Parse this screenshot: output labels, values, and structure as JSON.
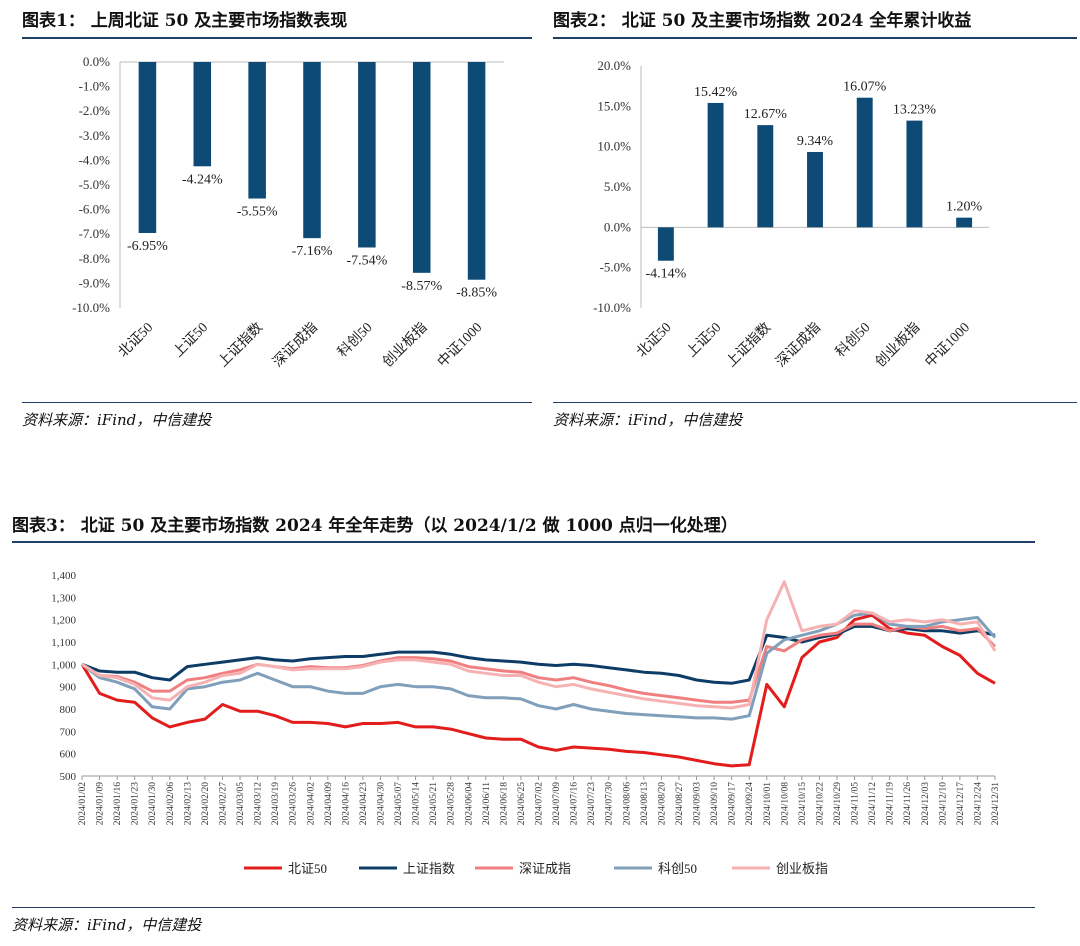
{
  "titles": {
    "chart1": "图表1：  上周北证 50 及主要市场指数表现",
    "chart2": "图表2：  北证 50 及主要市场指数 2024 全年累计收益",
    "chart3": "图表3：  北证 50 及主要市场指数 2024 年全年走势（以 2024/1/2 做 1000 点归一化处理）"
  },
  "sources": {
    "chart1": "资料来源：iFind，中信建投",
    "chart2": "资料来源：iFind，中信建投",
    "chart3": "资料来源：iFind，中信建投"
  },
  "colors": {
    "bar": "#0d4a76",
    "rule": "#1f3f66",
    "bz50": "#e31c1c",
    "sz_index": "#0d3d66",
    "szcz": "#f08080",
    "kc50": "#7f9fba",
    "cyb": "#f6b2b2"
  },
  "chart_data": [
    {
      "type": "bar",
      "categories": [
        "北证50",
        "上证50",
        "上证指数",
        "深证成指",
        "科创50",
        "创业板指",
        "中证1000"
      ],
      "values": [
        -6.95,
        -4.24,
        -5.55,
        -7.16,
        -7.54,
        -8.57,
        -8.85
      ],
      "value_labels": [
        "-6.95%",
        "-4.24%",
        "-5.55%",
        "-7.16%",
        "-7.54%",
        "-8.57%",
        "-8.85%"
      ],
      "yticks": [
        "0.0%",
        "-1.0%",
        "-2.0%",
        "-3.0%",
        "-4.0%",
        "-5.0%",
        "-6.0%",
        "-7.0%",
        "-8.0%",
        "-9.0%",
        "-10.0%"
      ],
      "ylim": [
        -10,
        0
      ],
      "grid": false
    },
    {
      "type": "bar",
      "categories": [
        "北证50",
        "上证50",
        "上证指数",
        "深证成指",
        "科创50",
        "创业板指",
        "中证1000"
      ],
      "values": [
        -4.14,
        15.42,
        12.67,
        9.34,
        16.07,
        13.23,
        1.2
      ],
      "value_labels": [
        "-4.14%",
        "15.42%",
        "12.67%",
        "9.34%",
        "16.07%",
        "13.23%",
        "1.20%"
      ],
      "yticks": [
        "20.0%",
        "15.0%",
        "10.0%",
        "5.0%",
        "0.0%",
        "-5.0%",
        "-10.0%"
      ],
      "ylim": [
        -10,
        20
      ],
      "grid": false
    },
    {
      "type": "line",
      "ylim": [
        500,
        1400
      ],
      "yticks": [
        "1,400",
        "1,300",
        "1,200",
        "1,100",
        "1,000",
        "900",
        "800",
        "700",
        "600",
        "500"
      ],
      "date_labels": [
        "2024/01/02",
        "2024/01/09",
        "2024/01/16",
        "2024/01/23",
        "2024/01/30",
        "2024/02/06",
        "2024/02/13",
        "2024/02/20",
        "2024/02/27",
        "2024/03/05",
        "2024/03/12",
        "2024/03/19",
        "2024/03/26",
        "2024/04/02",
        "2024/04/09",
        "2024/04/16",
        "2024/04/23",
        "2024/04/30",
        "2024/05/07",
        "2024/05/14",
        "2024/05/21",
        "2024/05/28",
        "2024/06/04",
        "2024/06/11",
        "2024/06/18",
        "2024/06/25",
        "2024/07/02",
        "2024/07/09",
        "2024/07/16",
        "2024/07/23",
        "2024/07/30",
        "2024/08/06",
        "2024/08/13",
        "2024/08/20",
        "2024/08/27",
        "2024/09/03",
        "2024/09/10",
        "2024/09/17",
        "2024/09/24",
        "2024/10/01",
        "2024/10/08",
        "2024/10/15",
        "2024/10/22",
        "2024/10/29",
        "2024/11/05",
        "2024/11/12",
        "2024/11/19",
        "2024/11/26",
        "2024/12/03",
        "2024/12/10",
        "2024/12/17",
        "2024/12/24",
        "2024/12/31"
      ],
      "legend_position": "bottom",
      "grid": false,
      "series": [
        {
          "name": "北证50",
          "color_key": "bz50",
          "width": 3,
          "values": [
            1000,
            870,
            840,
            830,
            760,
            720,
            740,
            755,
            820,
            790,
            790,
            770,
            740,
            740,
            735,
            720,
            735,
            735,
            740,
            720,
            720,
            710,
            690,
            670,
            665,
            665,
            630,
            615,
            630,
            625,
            620,
            610,
            605,
            595,
            585,
            570,
            555,
            545,
            550,
            910,
            810,
            1030,
            1100,
            1120,
            1200,
            1220,
            1160,
            1140,
            1130,
            1080,
            1040,
            960,
            915
          ]
        },
        {
          "name": "上证指数",
          "color_key": "sz_index",
          "width": 3,
          "values": [
            1000,
            970,
            965,
            965,
            940,
            930,
            990,
            1000,
            1010,
            1020,
            1030,
            1020,
            1015,
            1025,
            1030,
            1035,
            1035,
            1045,
            1055,
            1055,
            1055,
            1045,
            1030,
            1020,
            1015,
            1010,
            1000,
            995,
            1000,
            995,
            985,
            975,
            965,
            960,
            950,
            930,
            920,
            915,
            930,
            1130,
            1120,
            1100,
            1120,
            1135,
            1170,
            1170,
            1150,
            1160,
            1150,
            1150,
            1140,
            1150,
            1130
          ]
        },
        {
          "name": "深证成指",
          "color_key": "szcz",
          "width": 3,
          "values": [
            1000,
            950,
            945,
            920,
            880,
            880,
            930,
            940,
            960,
            975,
            1000,
            990,
            980,
            990,
            985,
            985,
            995,
            1015,
            1030,
            1030,
            1025,
            1015,
            990,
            980,
            970,
            965,
            940,
            930,
            940,
            920,
            905,
            885,
            870,
            860,
            850,
            840,
            830,
            830,
            840,
            1080,
            1060,
            1110,
            1130,
            1140,
            1180,
            1180,
            1150,
            1170,
            1160,
            1170,
            1150,
            1160,
            1080
          ]
        },
        {
          "name": "科创50",
          "color_key": "kc50",
          "width": 3,
          "values": [
            1000,
            940,
            920,
            890,
            810,
            800,
            890,
            900,
            920,
            930,
            960,
            930,
            900,
            900,
            880,
            870,
            870,
            900,
            910,
            900,
            900,
            890,
            860,
            850,
            850,
            845,
            815,
            800,
            820,
            800,
            790,
            780,
            775,
            770,
            765,
            760,
            760,
            755,
            770,
            1050,
            1110,
            1130,
            1150,
            1180,
            1220,
            1230,
            1180,
            1170,
            1170,
            1190,
            1200,
            1210,
            1120
          ]
        },
        {
          "name": "创业板指",
          "color_key": "cyb",
          "width": 3,
          "values": [
            1000,
            950,
            940,
            910,
            850,
            840,
            900,
            920,
            950,
            960,
            1000,
            990,
            975,
            980,
            980,
            980,
            990,
            1010,
            1020,
            1020,
            1010,
            1000,
            970,
            960,
            950,
            950,
            920,
            900,
            910,
            890,
            875,
            860,
            845,
            835,
            825,
            815,
            810,
            805,
            820,
            1200,
            1370,
            1150,
            1170,
            1180,
            1240,
            1230,
            1190,
            1200,
            1190,
            1200,
            1180,
            1190,
            1060
          ]
        }
      ]
    }
  ]
}
